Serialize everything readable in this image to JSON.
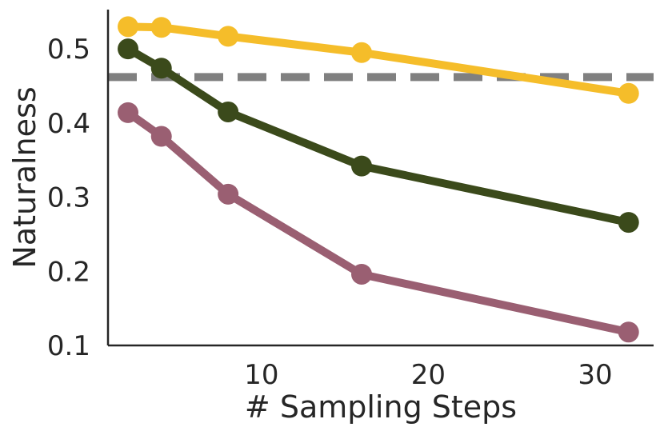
{
  "chart_data": {
    "type": "line",
    "title": "",
    "xlabel": "# Sampling Steps",
    "ylabel": "Naturalness",
    "xlim": [
      0.8,
      33.5
    ],
    "ylim": [
      0.1,
      0.553
    ],
    "xticks": [
      10,
      20,
      30
    ],
    "yticks": [
      0.1,
      0.2,
      0.3,
      0.4,
      0.5
    ],
    "x": [
      2,
      4,
      8,
      16,
      32
    ],
    "series": [
      {
        "color": "#f5bd2a",
        "values": [
          0.53,
          0.529,
          0.517,
          0.495,
          0.44
        ]
      },
      {
        "color": "#3b4a1b",
        "values": [
          0.5,
          0.474,
          0.415,
          0.342,
          0.266
        ]
      },
      {
        "color": "#9a5f72",
        "values": [
          0.414,
          0.382,
          0.304,
          0.196,
          0.118
        ]
      }
    ],
    "reference_line": {
      "y": 0.462,
      "style": "dashed",
      "color": "#808080"
    },
    "grid": false,
    "legend": "none"
  }
}
